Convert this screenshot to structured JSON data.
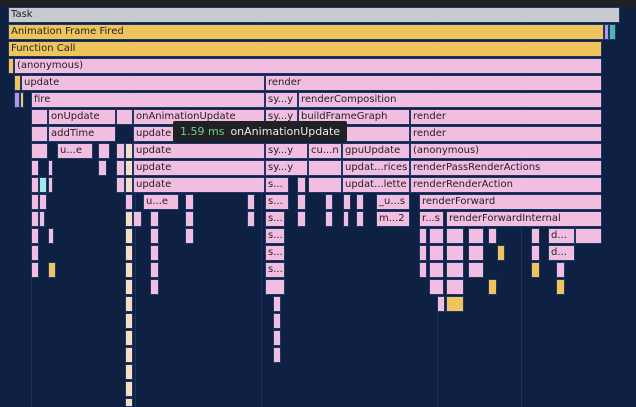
{
  "frames": {
    "task": "Task",
    "animation_frame_fired": "Animation Frame Fired",
    "function_call": "Function Call",
    "anonymous": "(anonymous)",
    "update": "update",
    "render": "render",
    "fire": "fire",
    "sy_y": "sy...y",
    "render_composition": "renderComposition",
    "on_update": "onUpdate",
    "on_animation_update": "onAnimationUpdate",
    "sy_y_short": "sy...y",
    "build_frame_graph": "buildFrameGraph",
    "render2": "render",
    "add_time": "addTime",
    "update2": "update",
    "render3": "render",
    "u_e": "u...e",
    "update3": "update",
    "sy_y2": "sy...y",
    "cu_n": "cu...n",
    "gpu_update": "gpuUpdate",
    "anonymous2": "(anonymous)",
    "update4": "update",
    "sy_y3": "sy...y",
    "updat_rices": "updat...rices",
    "render_pass_render_actions": "renderPassRenderActions",
    "update5": "update",
    "s1": "s...",
    "updat_lette": "updat...lette",
    "render_render_action": "renderRenderAction",
    "u_e2": "u...e",
    "s2": "s...",
    "u_s": "_u...s",
    "render_forward": "renderForward",
    "s3": "s...",
    "m_2": "m...2",
    "r_s": "r...s",
    "render_forward_internal": "renderForwardInternal",
    "s4": "s...",
    "d1": "d...",
    "s5": "s...",
    "d2": "d...",
    "s6": "s..."
  },
  "tooltip": {
    "duration": "1.59 ms",
    "name": "onAnimationUpdate"
  },
  "colors": {
    "background": "#0f2143",
    "scripting": "#f1bde0",
    "event": "#f0c45d",
    "task": "#c8cad0",
    "tooltip_bg": "#202124",
    "tooltip_ms": "#6ccf8e"
  }
}
